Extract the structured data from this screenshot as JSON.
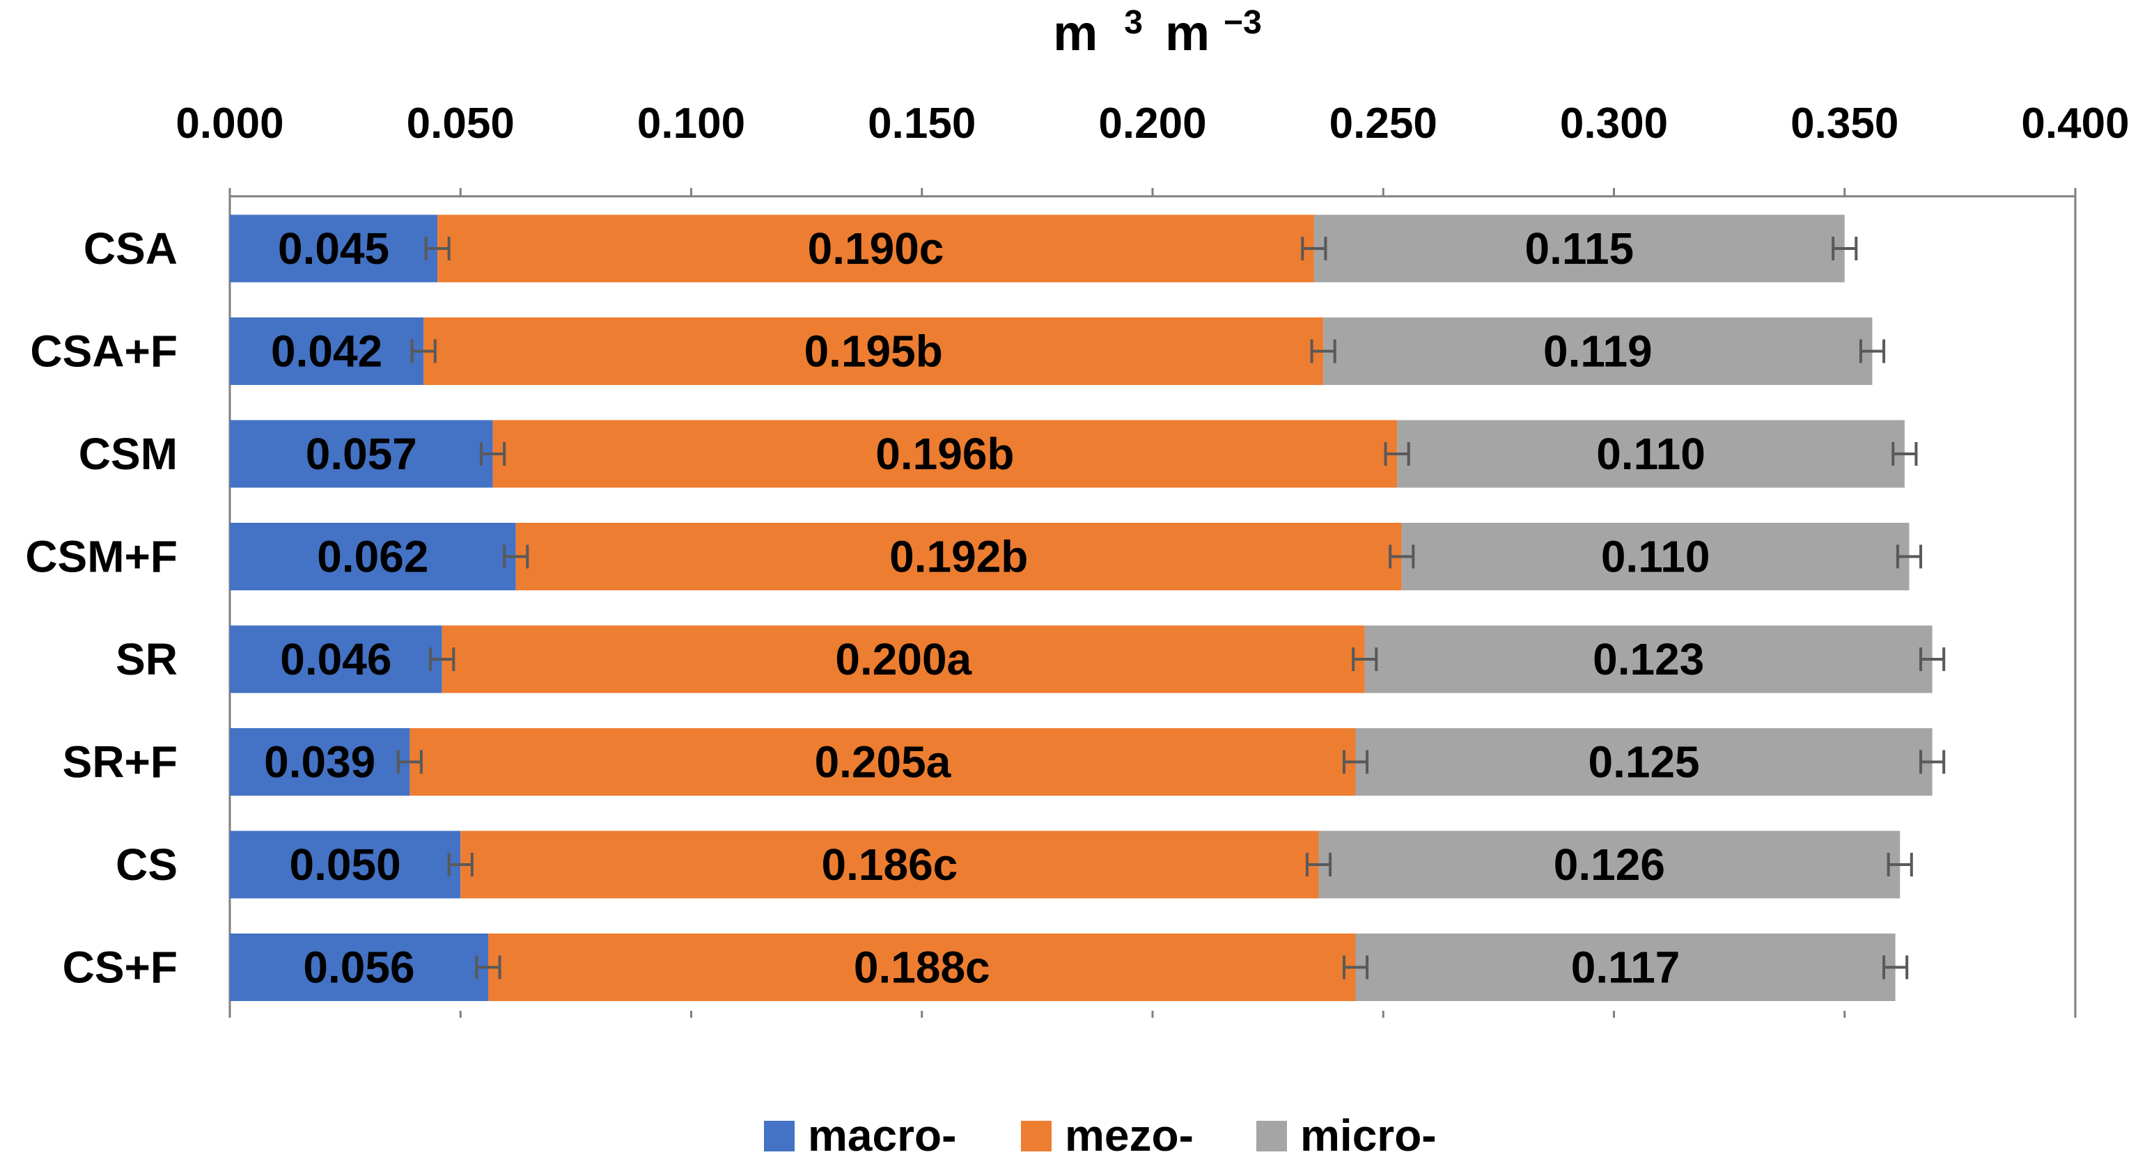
{
  "chart_data": {
    "type": "bar",
    "orientation": "horizontal",
    "stacked": true,
    "title": "",
    "xlabel": "m 3 m-3",
    "xlabel_parts": {
      "base1": "m",
      "sup1": "3",
      "base2": "m",
      "sup2": "−3"
    },
    "ylabel": "",
    "xlim": [
      0,
      0.4
    ],
    "x_ticks": [
      "0.000",
      "0.050",
      "0.100",
      "0.150",
      "0.200",
      "0.250",
      "0.300",
      "0.350",
      "0.400"
    ],
    "x_axis_position": "top",
    "grid": false,
    "legend_position": "bottom",
    "categories": [
      "CSA",
      "CSA+F",
      "CSM",
      "CSM+F",
      "SR",
      "SR+F",
      "CS",
      "CS+F"
    ],
    "series": [
      {
        "name": "macro-",
        "color": "#4472C4",
        "values": [
          0.045,
          0.042,
          0.057,
          0.062,
          0.046,
          0.039,
          0.05,
          0.056
        ],
        "labels": [
          "0.045",
          "0.042",
          "0.057",
          "0.062",
          "0.046",
          "0.039",
          "0.050",
          "0.056"
        ],
        "errors": [
          0.0025,
          0.0025,
          0.0025,
          0.0025,
          0.0025,
          0.0025,
          0.0025,
          0.0025
        ]
      },
      {
        "name": "mezo-",
        "color": "#ED7D31",
        "values": [
          0.19,
          0.195,
          0.196,
          0.192,
          0.2,
          0.205,
          0.186,
          0.188
        ],
        "labels": [
          "0.190c",
          "0.195b",
          "0.196b",
          "0.192b",
          "0.200a",
          "0.205a",
          "0.186c",
          "0.188c"
        ],
        "errors": [
          0.0025,
          0.0025,
          0.0025,
          0.0025,
          0.0025,
          0.0025,
          0.0025,
          0.0025
        ]
      },
      {
        "name": "micro-",
        "color": "#A5A5A5",
        "values": [
          0.115,
          0.119,
          0.11,
          0.11,
          0.123,
          0.125,
          0.126,
          0.117
        ],
        "labels": [
          "0.115",
          "0.119",
          "0.110",
          "0.110",
          "0.123",
          "0.125",
          "0.126",
          "0.117"
        ],
        "errors": [
          0.0025,
          0.0025,
          0.0025,
          0.0025,
          0.0025,
          0.0025,
          0.0025,
          0.0025
        ]
      }
    ]
  }
}
